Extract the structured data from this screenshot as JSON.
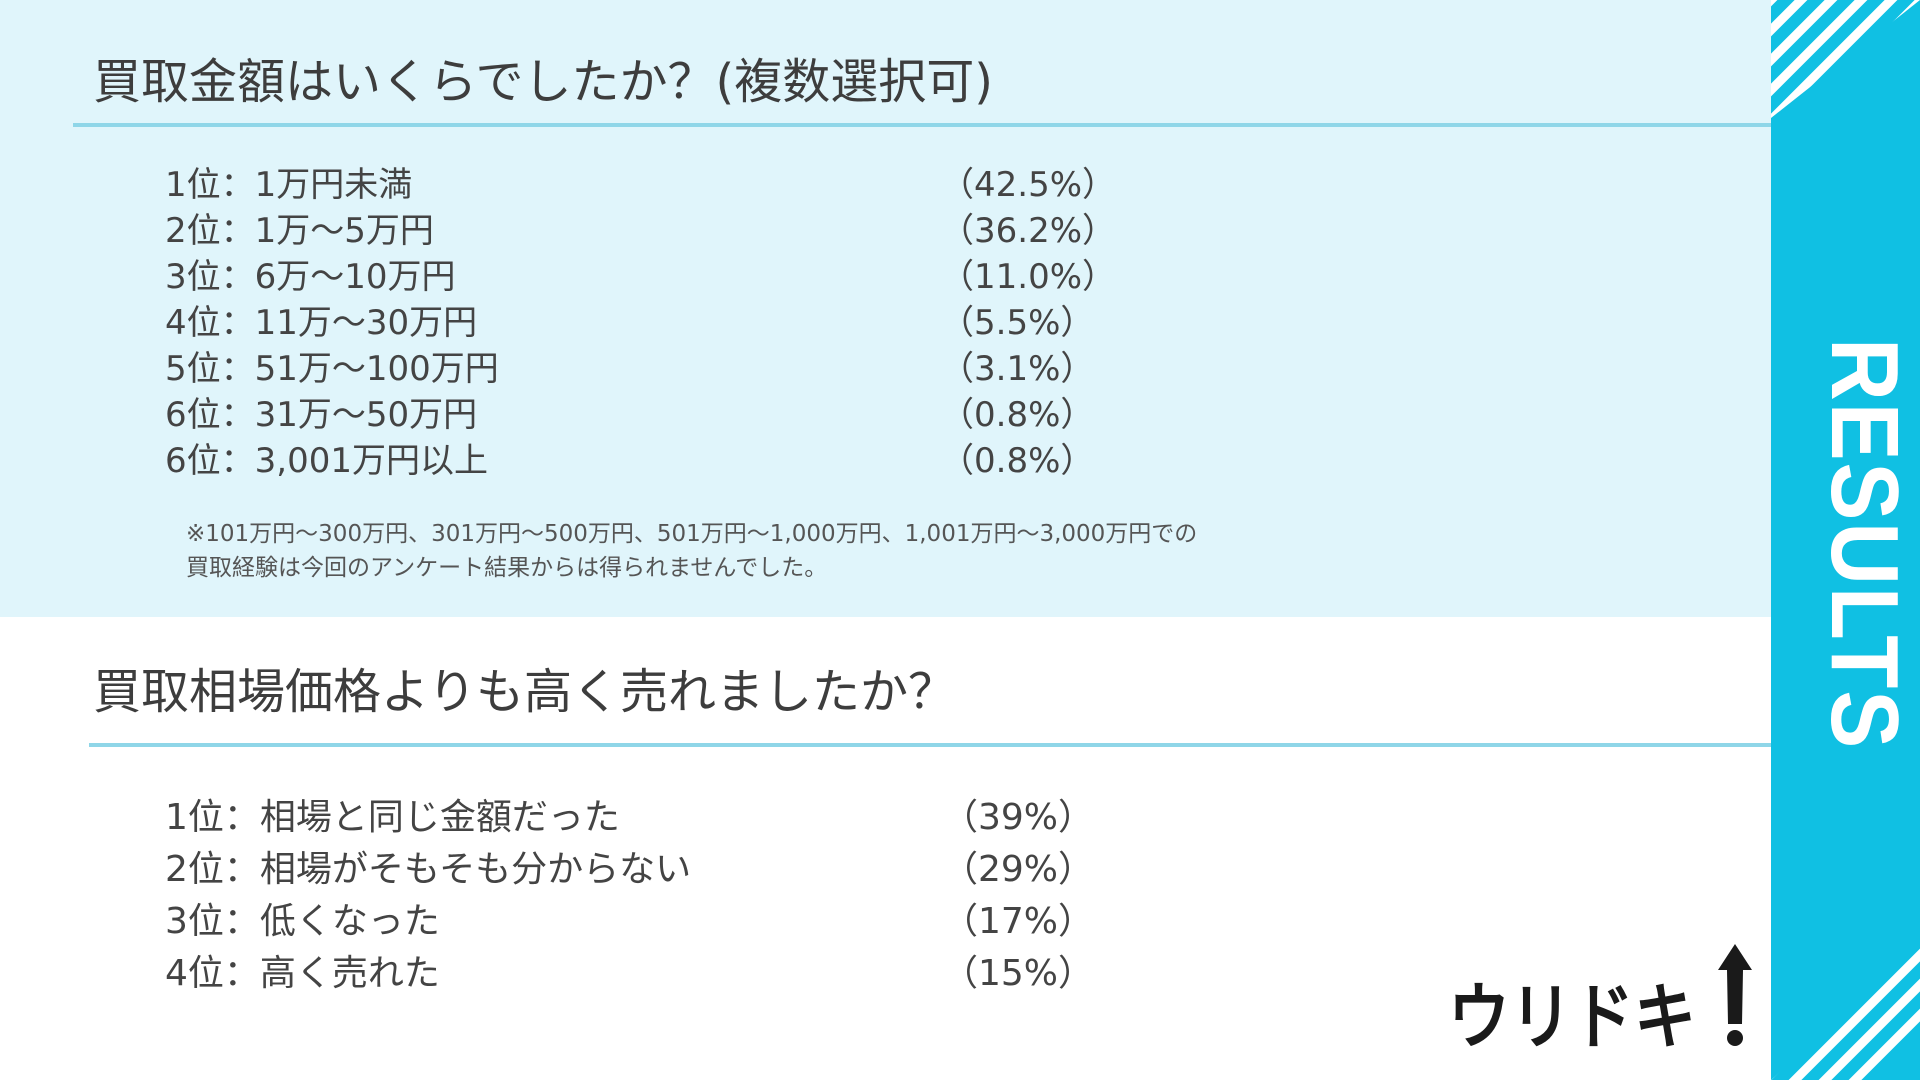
{
  "sidebar": {
    "label": "RESULTS",
    "accent_color": "#10c0e3"
  },
  "section1": {
    "title": "買取金額はいくらでしたか？(複数選択可)",
    "items": [
      {
        "label": "1位：1万円未満",
        "percent": "（42.5%）"
      },
      {
        "label": "2位：1万～5万円",
        "percent": "（36.2%）"
      },
      {
        "label": "3位：6万～10万円",
        "percent": "（11.0%）"
      },
      {
        "label": "4位：11万～30万円",
        "percent": "（5.5%）"
      },
      {
        "label": "5位：51万～100万円",
        "percent": "（3.1%）"
      },
      {
        "label": "6位：31万～50万円",
        "percent": "（0.8%）"
      },
      {
        "label": "6位：3,001万円以上",
        "percent": "（0.8%）"
      }
    ],
    "note_lines": [
      "※101万円～300万円、301万円～500万円、501万円～1,000万円、1,001万円～3,000万円での",
      "買取経験は今回のアンケート結果からは得られませんでした。"
    ]
  },
  "section2": {
    "title": "買取相場価格よりも高く売れましたか？",
    "items": [
      {
        "label": "1位：相場と同じ金額だった",
        "percent": "（39%）"
      },
      {
        "label": "2位：相場がそもそも分からない",
        "percent": "（29%）"
      },
      {
        "label": "3位：低くなった",
        "percent": "（17%）"
      },
      {
        "label": "4位：高く売れた",
        "percent": "（15%）"
      }
    ]
  },
  "logo": {
    "text": "ウリドキ"
  }
}
